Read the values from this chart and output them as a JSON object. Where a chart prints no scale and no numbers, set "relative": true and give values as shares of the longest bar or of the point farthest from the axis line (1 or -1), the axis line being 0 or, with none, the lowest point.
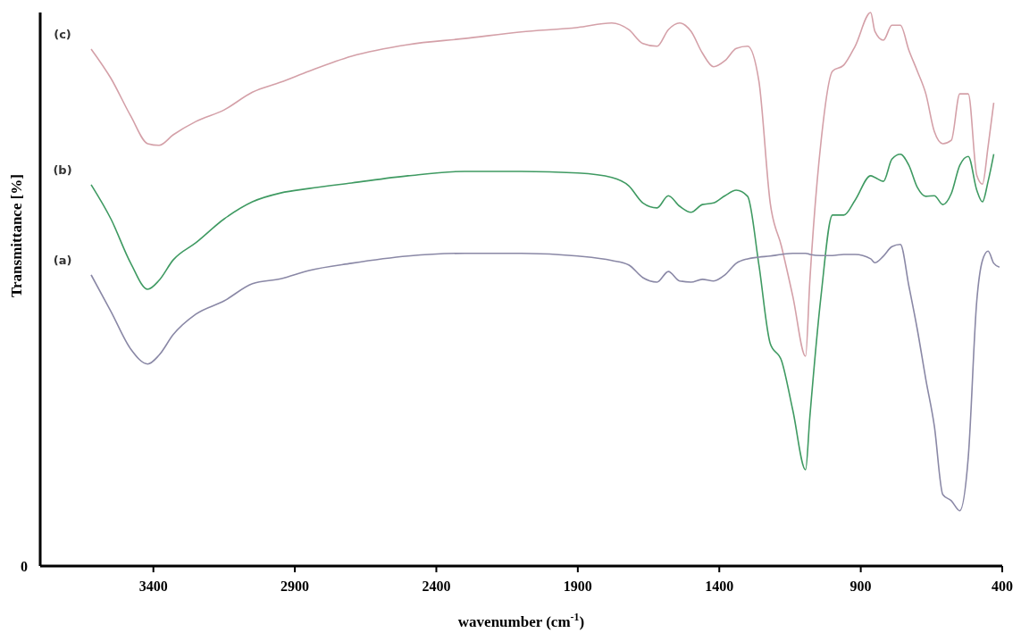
{
  "chart_data": {
    "type": "line",
    "relative": true,
    "xlabel": "wavenumber (cm$^{-1}$)",
    "ylabel": "Transmittance [%]",
    "annotations": [
      "0"
    ],
    "xlim": [
      3800,
      400
    ],
    "xticks": [
      3400,
      2900,
      2400,
      1900,
      1400,
      900,
      400
    ],
    "grid": false,
    "legend": false,
    "marker": "none",
    "line_style": "solid",
    "x": [
      3620,
      3550,
      3480,
      3420,
      3380,
      3330,
      3250,
      3150,
      3050,
      2950,
      2850,
      2700,
      2500,
      2300,
      2100,
      1900,
      1780,
      1720,
      1670,
      1620,
      1580,
      1540,
      1500,
      1460,
      1420,
      1380,
      1340,
      1300,
      1260,
      1220,
      1180,
      1140,
      1095,
      1080,
      1040,
      1000,
      960,
      920,
      865,
      850,
      820,
      790,
      760,
      730,
      700,
      670,
      640,
      610,
      580,
      550,
      520,
      490,
      470,
      450,
      430,
      410
    ],
    "series": [
      {
        "name": "(c)",
        "color": "#d4a0a8",
        "values": [
          0.934,
          0.881,
          0.813,
          0.763,
          0.76,
          0.779,
          0.803,
          0.824,
          0.856,
          0.874,
          0.894,
          0.921,
          0.942,
          0.953,
          0.965,
          0.973,
          0.981,
          0.969,
          0.944,
          0.939,
          0.969,
          0.981,
          0.966,
          0.927,
          0.902,
          0.913,
          0.935,
          0.939,
          0.876,
          0.656,
          0.577,
          0.487,
          0.379,
          0.515,
          0.769,
          0.894,
          0.905,
          0.939,
          1.0,
          0.966,
          0.95,
          0.977,
          0.977,
          0.932,
          0.894,
          0.853,
          0.785,
          0.763,
          0.769,
          0.853,
          0.853,
          0.706,
          0.69,
          0.758,
          0.837,
          null
        ]
      },
      {
        "name": "(b)",
        "color": "#3f9a62",
        "values": [
          0.689,
          0.627,
          0.547,
          0.5,
          0.516,
          0.553,
          0.584,
          0.627,
          0.658,
          0.674,
          0.682,
          0.692,
          0.705,
          0.713,
          0.713,
          0.71,
          0.702,
          0.687,
          0.656,
          0.647,
          0.669,
          0.65,
          0.639,
          0.653,
          0.656,
          0.669,
          0.679,
          0.668,
          0.544,
          0.402,
          0.371,
          0.281,
          0.174,
          0.269,
          0.49,
          0.634,
          0.634,
          0.661,
          0.705,
          0.702,
          0.695,
          0.735,
          0.744,
          0.724,
          0.684,
          0.668,
          0.669,
          0.653,
          0.673,
          0.724,
          0.74,
          0.679,
          0.658,
          0.695,
          0.744,
          null
        ]
      },
      {
        "name": "(a)",
        "color": "#8a88a6",
        "values": [
          0.526,
          0.46,
          0.392,
          0.365,
          0.381,
          0.418,
          0.455,
          0.479,
          0.51,
          0.519,
          0.534,
          0.547,
          0.56,
          0.565,
          0.565,
          0.56,
          0.552,
          0.544,
          0.521,
          0.513,
          0.532,
          0.515,
          0.513,
          0.518,
          0.515,
          0.526,
          0.547,
          0.555,
          0.558,
          0.56,
          0.563,
          0.565,
          0.565,
          0.563,
          0.561,
          0.561,
          0.563,
          0.563,
          0.555,
          0.548,
          0.56,
          0.577,
          0.581,
          0.506,
          0.427,
          0.337,
          0.253,
          0.129,
          0.118,
          0.1,
          0.197,
          0.479,
          0.552,
          0.569,
          0.547,
          0.54
        ]
      }
    ]
  }
}
